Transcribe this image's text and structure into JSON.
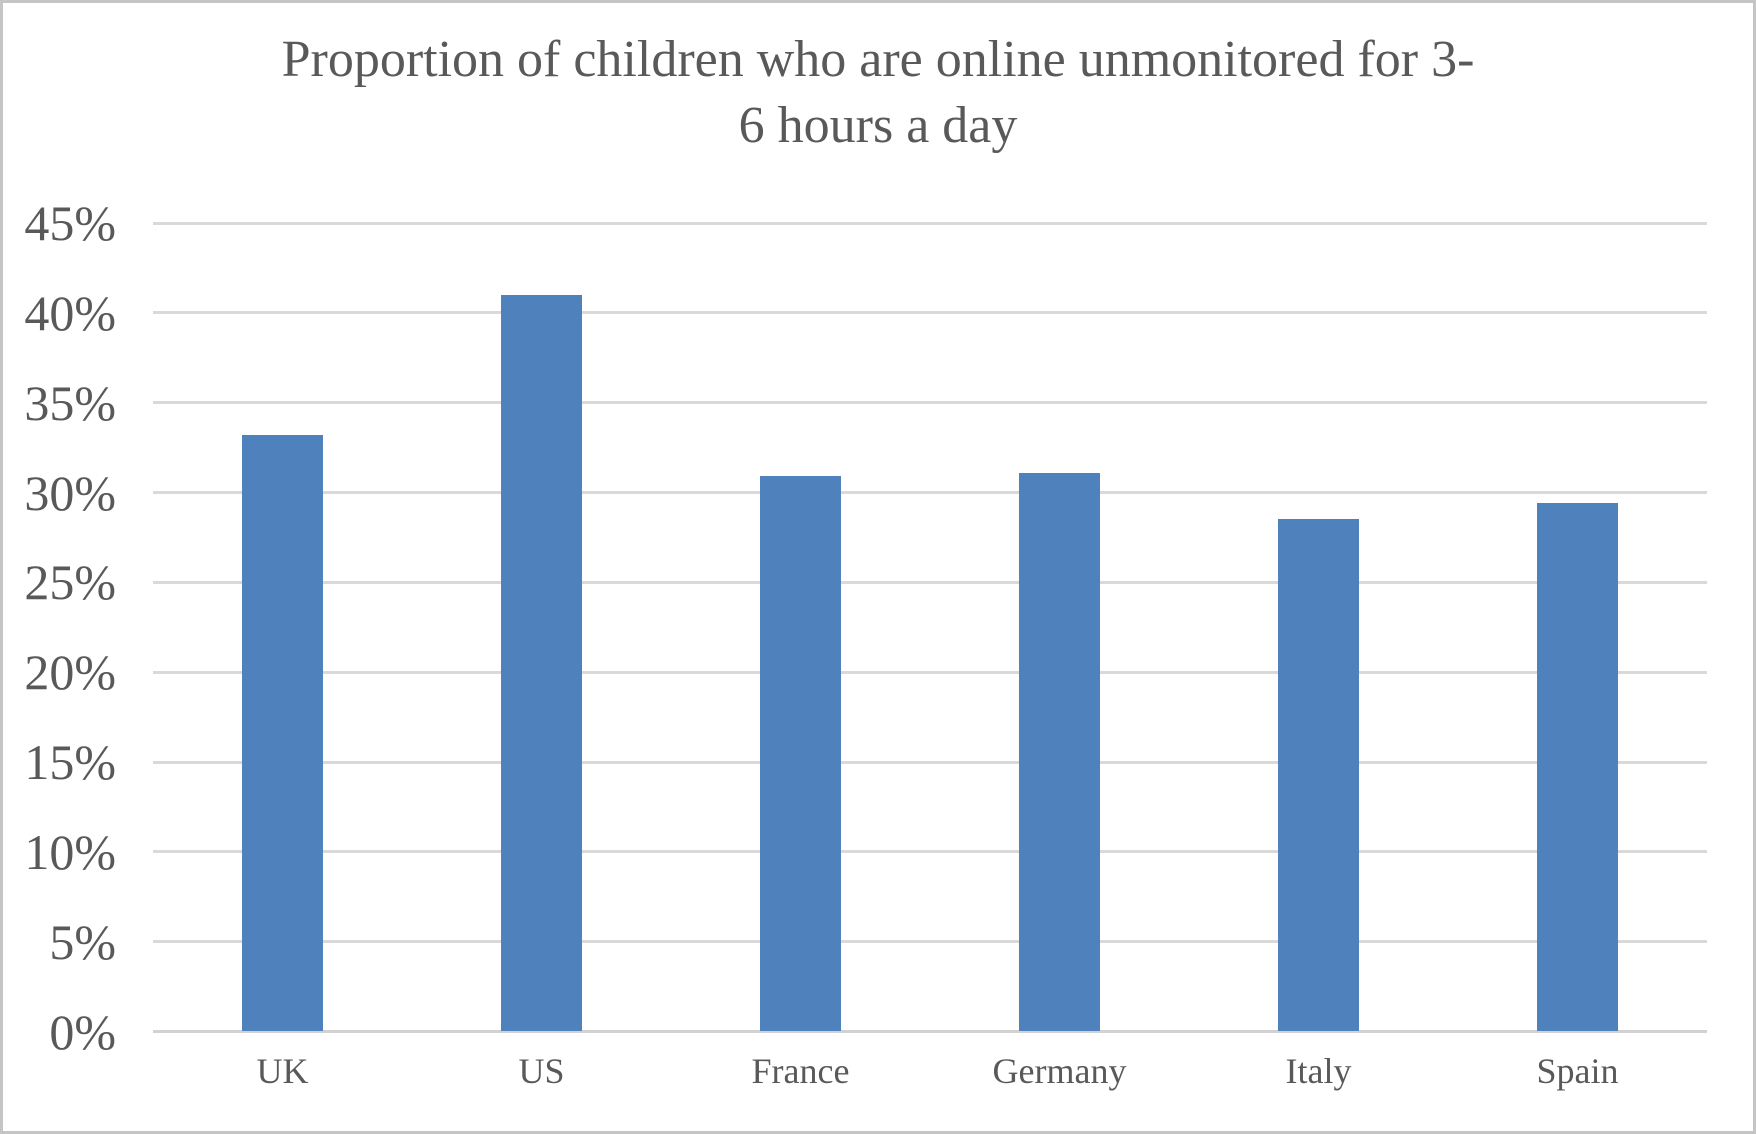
{
  "page": {
    "background": "#ffffff",
    "border_color": "#c5c5c5"
  },
  "chart_data": {
    "type": "bar",
    "title": "Proportion of children who are online unmonitored for 3-6 hours a day",
    "title_lines": [
      "Proportion of children who are online unmonitored for 3-",
      "6 hours a day"
    ],
    "categories": [
      "UK",
      "US",
      "France",
      "Germany",
      "Italy",
      "Spain"
    ],
    "values": [
      33.2,
      41,
      30.9,
      31.1,
      28.5,
      29.4
    ],
    "unit": "%",
    "xlabel": "",
    "ylabel": "",
    "ylim": [
      0,
      45
    ],
    "ytick_step": 5,
    "ytick_labels": [
      "0%",
      "5%",
      "10%",
      "15%",
      "20%",
      "25%",
      "30%",
      "35%",
      "40%",
      "45%"
    ],
    "grid": "horizontal",
    "legend": "none",
    "colors": {
      "bar": "#4f81bd",
      "gridline": "#d9d9d9",
      "baseline": "#d2d2d2",
      "text": "#595959"
    }
  }
}
